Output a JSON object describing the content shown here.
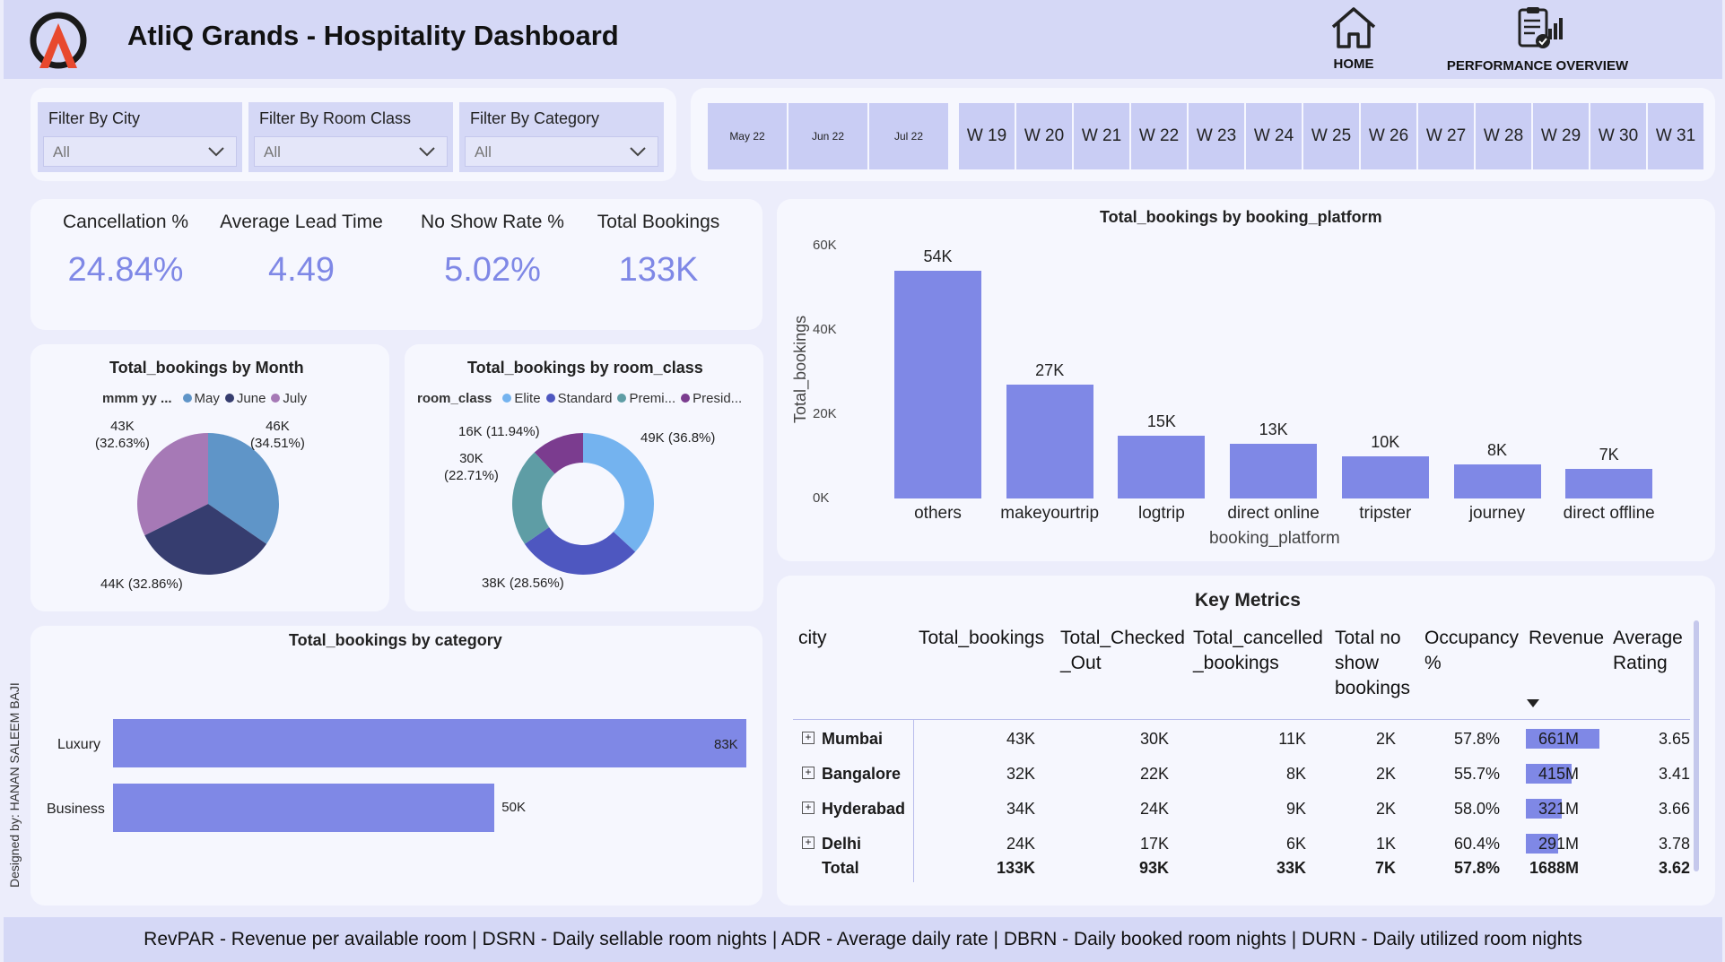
{
  "header": {
    "title": "AtliQ Grands - Hospitality Dashboard",
    "nav_home": "HOME",
    "nav_perf": "PERFORMANCE OVERVIEW"
  },
  "filters": [
    {
      "label": "Filter By City",
      "value": "All"
    },
    {
      "label": "Filter By Room Class",
      "value": "All"
    },
    {
      "label": "Filter By Category",
      "value": "All"
    }
  ],
  "dates": {
    "months": [
      "May 22",
      "Jun 22",
      "Jul 22"
    ],
    "weeks": [
      "W 19",
      "W 20",
      "W 21",
      "W 22",
      "W 23",
      "W 24",
      "W 25",
      "W 26",
      "W 27",
      "W 28",
      "W 29",
      "W 30",
      "W 31"
    ]
  },
  "kpis": [
    {
      "label": "Cancellation %",
      "value": "24.84%"
    },
    {
      "label": "Average Lead Time",
      "value": "4.49"
    },
    {
      "label": "No Show Rate %",
      "value": "5.02%"
    },
    {
      "label": "Total Bookings",
      "value": "133K"
    }
  ],
  "colors": {
    "accent": "#7f88e6",
    "may": "#5f95c8",
    "june": "#363d6f",
    "july": "#a679b6",
    "elite": "#74b3ef",
    "standard": "#4e57c0",
    "premium": "#5e9da5",
    "presidential": "#7b3c8f"
  },
  "chart_data": [
    {
      "type": "pie",
      "title": "Total_bookings by Month",
      "legend_title": "mmm yy ...",
      "labels": [
        "May",
        "June",
        "July"
      ],
      "values": [
        46,
        44,
        43
      ],
      "value_labels": [
        "46K",
        "44K (32.86%)",
        "43K"
      ],
      "pct_labels": [
        "(34.51%)",
        "",
        "(32.63%)"
      ]
    },
    {
      "type": "pie",
      "donut": true,
      "title": "Total_bookings by room_class",
      "legend_title": "room_class",
      "labels": [
        "Elite",
        "Standard",
        "Premi...",
        "Presid..."
      ],
      "values": [
        49,
        38,
        30,
        16
      ],
      "value_labels": [
        "49K (36.8%)",
        "38K (28.56%)",
        "30K",
        "16K (11.94%)"
      ],
      "pct_labels": [
        "",
        "",
        "(22.71%)",
        ""
      ]
    },
    {
      "type": "bar",
      "orientation": "horizontal",
      "title": "Total_bookings by category",
      "categories": [
        "Luxury",
        "Business"
      ],
      "values": [
        83,
        50
      ],
      "value_labels": [
        "83K",
        "50K"
      ]
    },
    {
      "type": "bar",
      "title": "Total_bookings by booking_platform",
      "categories": [
        "others",
        "makeyourtrip",
        "logtrip",
        "direct online",
        "tripster",
        "journey",
        "direct offline"
      ],
      "values": [
        54,
        27,
        15,
        13,
        10,
        8,
        7
      ],
      "value_labels": [
        "54K",
        "27K",
        "15K",
        "13K",
        "10K",
        "8K",
        "7K"
      ],
      "xlabel": "booking_platform",
      "ylabel": "Total_bookings",
      "yticks": [
        "0K",
        "20K",
        "40K",
        "60K"
      ],
      "ylim": [
        0,
        60
      ]
    }
  ],
  "key_metrics": {
    "title": "Key Metrics",
    "headers": [
      "city",
      "Total_bookings",
      "Total_Checked _Out",
      "Total_cancelled _bookings",
      "Total no show bookings",
      "Occupancy %",
      "Revenue",
      "Average Rating"
    ],
    "rows": [
      {
        "city": "Mumbai",
        "bookings": "43K",
        "checked_out": "30K",
        "cancelled": "11K",
        "no_show": "2K",
        "occupancy": "57.8%",
        "revenue": "661M",
        "revenue_value": 661,
        "rating": "3.65"
      },
      {
        "city": "Bangalore",
        "bookings": "32K",
        "checked_out": "22K",
        "cancelled": "8K",
        "no_show": "2K",
        "occupancy": "55.7%",
        "revenue": "415M",
        "revenue_value": 415,
        "rating": "3.41"
      },
      {
        "city": "Hyderabad",
        "bookings": "34K",
        "checked_out": "24K",
        "cancelled": "9K",
        "no_show": "2K",
        "occupancy": "58.0%",
        "revenue": "321M",
        "revenue_value": 321,
        "rating": "3.66"
      },
      {
        "city": "Delhi",
        "bookings": "24K",
        "checked_out": "17K",
        "cancelled": "6K",
        "no_show": "1K",
        "occupancy": "60.4%",
        "revenue": "291M",
        "revenue_value": 291,
        "rating": "3.78"
      }
    ],
    "total": {
      "city": "Total",
      "bookings": "133K",
      "checked_out": "93K",
      "cancelled": "33K",
      "no_show": "7K",
      "occupancy": "57.8%",
      "revenue": "1688M",
      "rating": "3.62"
    }
  },
  "footer": "RevPAR - Revenue per available room | DSRN - Daily sellable room nights | ADR - Average daily rate | DBRN - Daily booked room nights | DURN - Daily utilized room nights",
  "designer": "Designed by: HANAN SALEEM BAJI"
}
